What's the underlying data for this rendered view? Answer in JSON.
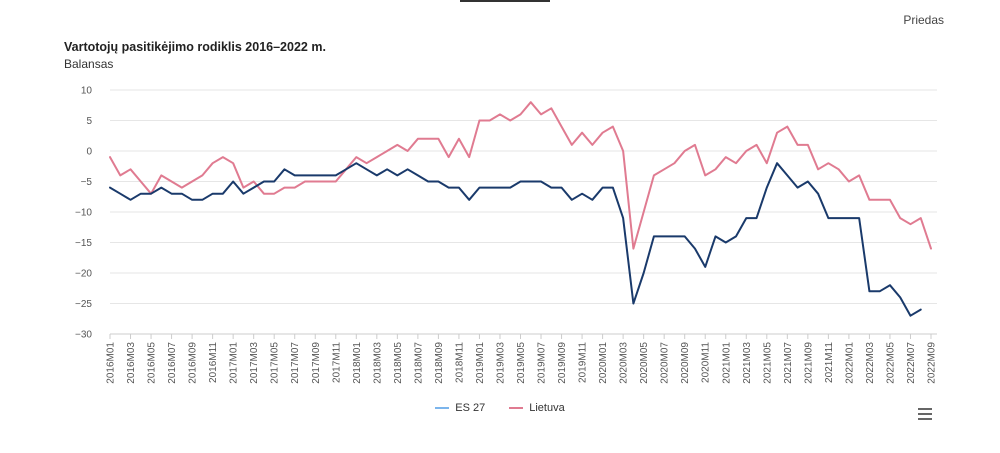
{
  "header": {
    "appendix_label": "Priedas"
  },
  "colors": {
    "es27": "#1a3a6b",
    "lietuva": "#e07b91",
    "legend_es27": "#7cb5ec",
    "grid": "#e6e6e6",
    "axis": "#cccccc"
  },
  "chart_data": {
    "type": "line",
    "title": "Vartotojų pasitikėjimo rodiklis 2016–2022 m.",
    "ylabel": "Balansas",
    "xlabel": "",
    "ylim": [
      -30,
      10
    ],
    "yticks": [
      10,
      5,
      0,
      -5,
      -10,
      -15,
      -20,
      -25,
      -30
    ],
    "x": [
      "2016M01",
      "2016M02",
      "2016M03",
      "2016M04",
      "2016M05",
      "2016M06",
      "2016M07",
      "2016M08",
      "2016M09",
      "2016M10",
      "2016M11",
      "2016M12",
      "2017M01",
      "2017M02",
      "2017M03",
      "2017M04",
      "2017M05",
      "2017M06",
      "2017M07",
      "2017M08",
      "2017M09",
      "2017M10",
      "2017M11",
      "2017M12",
      "2018M01",
      "2018M02",
      "2018M03",
      "2018M04",
      "2018M05",
      "2018M06",
      "2018M07",
      "2018M08",
      "2018M09",
      "2018M10",
      "2018M11",
      "2018M12",
      "2019M01",
      "2019M02",
      "2019M03",
      "2019M04",
      "2019M05",
      "2019M06",
      "2019M07",
      "2019M08",
      "2019M09",
      "2019M10",
      "2019M11",
      "2019M12",
      "2020M01",
      "2020M02",
      "2020M03",
      "2020M04",
      "2020M05",
      "2020M06",
      "2020M07",
      "2020M08",
      "2020M09",
      "2020M10",
      "2020M11",
      "2020M12",
      "2021M01",
      "2021M02",
      "2021M03",
      "2021M04",
      "2021M05",
      "2021M06",
      "2021M07",
      "2021M08",
      "2021M09",
      "2021M10",
      "2021M11",
      "2021M12",
      "2022M01",
      "2022M02",
      "2022M03",
      "2022M04",
      "2022M05",
      "2022M06",
      "2022M07",
      "2022M08",
      "2022M09"
    ],
    "xticklabels": [
      "2016M01",
      "2016M03",
      "2016M05",
      "2016M07",
      "2016M09",
      "2016M11",
      "2017M01",
      "2017M03",
      "2017M05",
      "2017M07",
      "2017M09",
      "2017M11",
      "2018M01",
      "2018M03",
      "2018M05",
      "2018M07",
      "2018M09",
      "2018M11",
      "2019M01",
      "2019M03",
      "2019M05",
      "2019M07",
      "2019M09",
      "2019M11",
      "2020M01",
      "2020M03",
      "2020M05",
      "2020M07",
      "2020M09",
      "2020M11",
      "2021M01",
      "2021M03",
      "2021M05",
      "2021M07",
      "2021M09",
      "2021M11",
      "2022M01",
      "2022M03",
      "2022M05",
      "2022M07",
      "2022M09"
    ],
    "series": [
      {
        "name": "ES 27",
        "values": [
          -6,
          -7,
          -8,
          -7,
          -7,
          -6,
          -7,
          -7,
          -8,
          -8,
          -7,
          -7,
          -5,
          -7,
          -6,
          -5,
          -5,
          -3,
          -4,
          -4,
          -4,
          -4,
          -4,
          -3,
          -2,
          -3,
          -4,
          -3,
          -4,
          -3,
          -4,
          -5,
          -5,
          -6,
          -6,
          -8,
          -6,
          -6,
          -6,
          -6,
          -5,
          -5,
          -5,
          -6,
          -6,
          -8,
          -7,
          -8,
          -6,
          -6,
          -11,
          -25,
          -20,
          -14,
          -14,
          -14,
          -14,
          -16,
          -19,
          -14,
          -15,
          -14,
          -11,
          -11,
          -6,
          -2,
          -4,
          -6,
          -5,
          -7,
          -11,
          -11,
          -11,
          -11,
          -23,
          -23,
          -22,
          -24,
          -27,
          -26,
          null
        ]
      },
      {
        "name": "Lietuva",
        "values": [
          -1,
          -4,
          -3,
          -5,
          -7,
          -4,
          -5,
          -6,
          -5,
          -4,
          -2,
          -1,
          -2,
          -6,
          -5,
          -7,
          -7,
          -6,
          -6,
          -5,
          -5,
          -5,
          -5,
          -3,
          -1,
          -2,
          -1,
          0,
          1,
          0,
          2,
          2,
          2,
          -1,
          2,
          -1,
          5,
          5,
          6,
          5,
          6,
          8,
          6,
          7,
          4,
          1,
          3,
          1,
          3,
          4,
          0,
          -16,
          -10,
          -4,
          -3,
          -2,
          0,
          1,
          -4,
          -3,
          -1,
          -2,
          0,
          1,
          -2,
          3,
          4,
          1,
          1,
          -3,
          -2,
          -3,
          -5,
          -4,
          -8,
          -8,
          -8,
          -11,
          -12,
          -11,
          -16
        ]
      }
    ],
    "legend": [
      "ES 27",
      "Lietuva"
    ],
    "legend_position": "bottom-center",
    "grid": true
  }
}
